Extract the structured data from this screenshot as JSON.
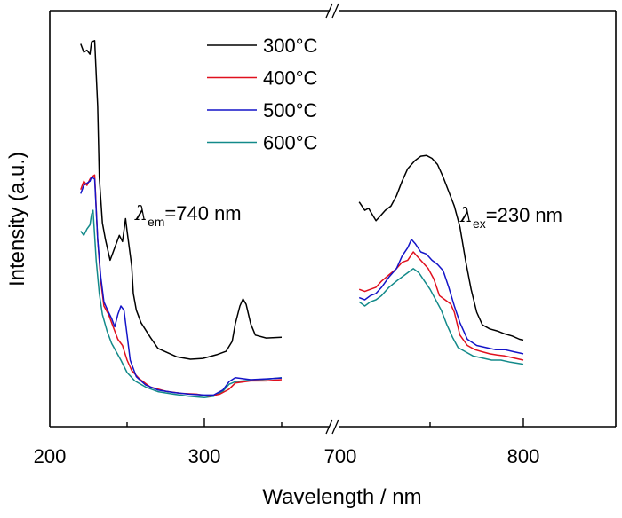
{
  "chart_data": {
    "type": "line",
    "title": "",
    "xlabel": "Wavelength / nm",
    "ylabel": "Intensity (a.u.)",
    "x_axis_break": true,
    "xlim_left": [
      200,
      382
    ],
    "xlim_right": [
      700,
      850
    ],
    "ylim": [
      0,
      100
    ],
    "x_ticks": [
      {
        "value": 200,
        "label": "200",
        "segment": "left",
        "major": true
      },
      {
        "value": 250,
        "label": "",
        "segment": "left",
        "major": false
      },
      {
        "value": 300,
        "label": "300",
        "segment": "left",
        "major": true
      },
      {
        "value": 350,
        "label": "",
        "segment": "left",
        "major": false
      },
      {
        "value": 700,
        "label": "700",
        "segment": "right",
        "major": true
      },
      {
        "value": 750,
        "label": "",
        "segment": "right",
        "major": false
      },
      {
        "value": 800,
        "label": "800",
        "segment": "right",
        "major": true
      }
    ],
    "legend": {
      "position": "top-center",
      "entries": [
        "300°C",
        "400°C",
        "500°C",
        "600°C"
      ]
    },
    "annotations": [
      {
        "symbol": "λ",
        "sub": "em",
        "text": "=740 nm",
        "anchor_nm": 252,
        "anchor_I": 51
      },
      {
        "symbol": "λ",
        "sub": "ex",
        "text": "=230 nm",
        "anchor_nm": 765,
        "anchor_I": 51
      }
    ],
    "series": [
      {
        "name": "300°C",
        "color": "#000000",
        "excitation": [
          [
            220,
            92
          ],
          [
            222,
            90
          ],
          [
            224,
            90.5
          ],
          [
            226,
            89.5
          ],
          [
            227,
            92.5
          ],
          [
            229,
            92.8
          ],
          [
            231,
            77
          ],
          [
            232,
            60
          ],
          [
            234,
            49
          ],
          [
            236,
            45
          ],
          [
            239,
            40
          ],
          [
            242,
            43
          ],
          [
            245,
            46
          ],
          [
            247,
            44.5
          ],
          [
            249,
            50
          ],
          [
            250,
            47
          ],
          [
            253,
            38.6
          ],
          [
            254,
            32
          ],
          [
            256,
            28
          ],
          [
            259,
            25
          ],
          [
            265,
            21.5
          ],
          [
            270,
            18.8
          ],
          [
            282,
            16.8
          ],
          [
            291,
            16.2
          ],
          [
            299,
            16.4
          ],
          [
            308,
            17.3
          ],
          [
            314,
            18.1
          ],
          [
            318,
            20.5
          ],
          [
            320,
            24.7
          ],
          [
            323,
            29
          ],
          [
            325,
            30.7
          ],
          [
            327,
            29.4
          ],
          [
            330,
            24.7
          ],
          [
            333,
            22
          ],
          [
            340,
            21.3
          ],
          [
            350,
            21.5
          ]
        ],
        "emission": [
          [
            712,
            54
          ],
          [
            715,
            52
          ],
          [
            717,
            52.5
          ],
          [
            719,
            51
          ],
          [
            721,
            49.5
          ],
          [
            723,
            50.5
          ],
          [
            726,
            52
          ],
          [
            729,
            53
          ],
          [
            732,
            55.5
          ],
          [
            735,
            59
          ],
          [
            738,
            62
          ],
          [
            742,
            64
          ],
          [
            745,
            65
          ],
          [
            748,
            65.2
          ],
          [
            751,
            64.5
          ],
          [
            754,
            63
          ],
          [
            757,
            60
          ],
          [
            760,
            56.5
          ],
          [
            763,
            53
          ],
          [
            766,
            48
          ],
          [
            769,
            40
          ],
          [
            772,
            33
          ],
          [
            775,
            27.5
          ],
          [
            778,
            24.5
          ],
          [
            782,
            23.5
          ],
          [
            786,
            23
          ],
          [
            790,
            22.3
          ],
          [
            794,
            21.8
          ],
          [
            798,
            21
          ],
          [
            800,
            20.8
          ]
        ]
      },
      {
        "name": "400°C",
        "color": "#e0101e",
        "excitation": [
          [
            220,
            57
          ],
          [
            222,
            59
          ],
          [
            224,
            58
          ],
          [
            226,
            59.5
          ],
          [
            227,
            60
          ],
          [
            229,
            60.5
          ],
          [
            231,
            45
          ],
          [
            233,
            35
          ],
          [
            235,
            29
          ],
          [
            238,
            27
          ],
          [
            241,
            24
          ],
          [
            244,
            21
          ],
          [
            247,
            19.5
          ],
          [
            250,
            16
          ],
          [
            253,
            13.5
          ],
          [
            258,
            11.5
          ],
          [
            265,
            9.5
          ],
          [
            275,
            8.5
          ],
          [
            285,
            8
          ],
          [
            295,
            7.8
          ],
          [
            303,
            7.3
          ],
          [
            310,
            7.8
          ],
          [
            316,
            9
          ],
          [
            320,
            10.5
          ],
          [
            330,
            11
          ],
          [
            340,
            11
          ],
          [
            350,
            11.3
          ]
        ],
        "emission": [
          [
            712,
            33
          ],
          [
            715,
            32.5
          ],
          [
            718,
            33
          ],
          [
            721,
            33.5
          ],
          [
            724,
            35
          ],
          [
            728,
            36.5
          ],
          [
            732,
            38
          ],
          [
            735,
            39.5
          ],
          [
            738,
            40
          ],
          [
            741,
            42
          ],
          [
            743,
            41
          ],
          [
            746,
            39.5
          ],
          [
            749,
            38
          ],
          [
            752,
            35.5
          ],
          [
            755,
            31.5
          ],
          [
            758,
            30.5
          ],
          [
            761,
            29.5
          ],
          [
            763,
            27.5
          ],
          [
            766,
            22
          ],
          [
            770,
            19.5
          ],
          [
            774,
            18.5
          ],
          [
            778,
            18
          ],
          [
            782,
            17.5
          ],
          [
            786,
            17.2
          ],
          [
            790,
            17
          ],
          [
            795,
            16.5
          ],
          [
            800,
            16
          ]
        ]
      },
      {
        "name": "500°C",
        "color": "#1414c8",
        "excitation": [
          [
            220,
            56
          ],
          [
            222,
            58
          ],
          [
            224,
            58.5
          ],
          [
            226,
            59
          ],
          [
            227,
            60
          ],
          [
            229,
            59.5
          ],
          [
            231,
            45
          ],
          [
            233,
            36
          ],
          [
            235,
            30
          ],
          [
            238,
            27.5
          ],
          [
            240,
            26
          ],
          [
            242,
            24
          ],
          [
            244,
            27
          ],
          [
            246,
            29
          ],
          [
            248,
            28
          ],
          [
            250,
            22
          ],
          [
            252,
            16
          ],
          [
            256,
            12
          ],
          [
            262,
            10
          ],
          [
            270,
            8.8
          ],
          [
            280,
            8.2
          ],
          [
            290,
            7.8
          ],
          [
            300,
            7.6
          ],
          [
            306,
            7.6
          ],
          [
            312,
            8.8
          ],
          [
            316,
            10.8
          ],
          [
            320,
            11.8
          ],
          [
            330,
            11.3
          ],
          [
            340,
            11.5
          ],
          [
            350,
            11.7
          ]
        ],
        "emission": [
          [
            712,
            31
          ],
          [
            715,
            30.5
          ],
          [
            718,
            31.5
          ],
          [
            721,
            32
          ],
          [
            724,
            33.5
          ],
          [
            728,
            36
          ],
          [
            732,
            38
          ],
          [
            735,
            41
          ],
          [
            738,
            43
          ],
          [
            740,
            45
          ],
          [
            742,
            44
          ],
          [
            745,
            42
          ],
          [
            748,
            41.5
          ],
          [
            751,
            40
          ],
          [
            754,
            39
          ],
          [
            757,
            37.5
          ],
          [
            760,
            33.5
          ],
          [
            763,
            29
          ],
          [
            766,
            25
          ],
          [
            770,
            21
          ],
          [
            775,
            19.5
          ],
          [
            780,
            19
          ],
          [
            785,
            18.5
          ],
          [
            790,
            18.5
          ],
          [
            795,
            18
          ],
          [
            800,
            17.5
          ]
        ]
      },
      {
        "name": "600°C",
        "color": "#138a8a",
        "excitation": [
          [
            220,
            47
          ],
          [
            222,
            46
          ],
          [
            224,
            47.5
          ],
          [
            226,
            48.5
          ],
          [
            227,
            51
          ],
          [
            228,
            52
          ],
          [
            230,
            40
          ],
          [
            232,
            32
          ],
          [
            234,
            27
          ],
          [
            237,
            23
          ],
          [
            240,
            20
          ],
          [
            243,
            18
          ],
          [
            246,
            16
          ],
          [
            250,
            13
          ],
          [
            255,
            11
          ],
          [
            262,
            9.5
          ],
          [
            270,
            8.4
          ],
          [
            280,
            7.8
          ],
          [
            290,
            7.3
          ],
          [
            300,
            7
          ],
          [
            306,
            7.3
          ],
          [
            312,
            8.5
          ],
          [
            316,
            10.2
          ],
          [
            320,
            10.8
          ],
          [
            330,
            11.2
          ],
          [
            340,
            11.4
          ],
          [
            350,
            11.8
          ]
        ],
        "emission": [
          [
            712,
            30
          ],
          [
            715,
            29
          ],
          [
            718,
            30
          ],
          [
            721,
            30.5
          ],
          [
            724,
            31.5
          ],
          [
            728,
            33.5
          ],
          [
            732,
            35
          ],
          [
            735,
            36
          ],
          [
            738,
            37
          ],
          [
            741,
            38
          ],
          [
            744,
            37
          ],
          [
            747,
            35
          ],
          [
            750,
            33
          ],
          [
            753,
            30.5
          ],
          [
            756,
            28
          ],
          [
            759,
            24.5
          ],
          [
            762,
            21.5
          ],
          [
            765,
            19
          ],
          [
            769,
            18
          ],
          [
            773,
            17
          ],
          [
            778,
            16.5
          ],
          [
            783,
            16
          ],
          [
            788,
            16
          ],
          [
            793,
            15.5
          ],
          [
            800,
            15
          ]
        ]
      }
    ]
  }
}
